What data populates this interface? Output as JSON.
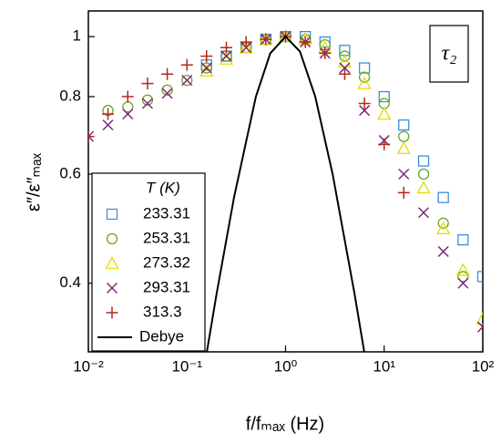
{
  "chart_data": {
    "type": "scatter",
    "x_label": "f/fₘₐₓ (Hz)",
    "y_label": "ε″/ε″ₘₐₓ",
    "annotation": "τ₂",
    "legend_title": "T (K)",
    "xscale": "log",
    "yscale": "log",
    "xlim": [
      0.01,
      100
    ],
    "ylim": [
      0.31,
      1.1
    ],
    "xticks": [
      {
        "value": 0.01,
        "label": "10⁻²"
      },
      {
        "value": 0.1,
        "label": "10⁻¹"
      },
      {
        "value": 1,
        "label": "10⁰"
      },
      {
        "value": 10,
        "label": "10¹"
      },
      {
        "value": 100,
        "label": "10²"
      }
    ],
    "yticks": [
      0.4,
      0.6,
      0.8,
      1
    ],
    "legend": "lower left",
    "series": [
      {
        "name": "233.31",
        "color": "#3a8fdc",
        "marker": "square",
        "x": [
          0.158,
          0.251,
          0.398,
          0.631,
          1,
          1.585,
          2.51,
          3.98,
          6.31,
          10,
          15.8,
          25.1,
          39.8,
          63.1,
          100
        ],
        "values": [
          0.9,
          0.93,
          0.96,
          0.99,
          1.0,
          1.0,
          0.98,
          0.95,
          0.89,
          0.8,
          0.72,
          0.63,
          0.55,
          0.47,
          0.41
        ]
      },
      {
        "name": "253.31",
        "color": "#6aa622",
        "marker": "circle",
        "x": [
          0.0158,
          0.0251,
          0.0398,
          0.0631,
          0.1,
          0.158,
          0.251,
          0.398,
          0.631,
          1,
          1.585,
          2.51,
          3.98,
          6.31,
          10,
          15.8,
          25.1,
          39.8,
          63.1
        ],
        "values": [
          0.76,
          0.77,
          0.79,
          0.82,
          0.85,
          0.89,
          0.93,
          0.96,
          0.99,
          1.0,
          0.99,
          0.97,
          0.93,
          0.86,
          0.78,
          0.69,
          0.6,
          0.5,
          0.41
        ]
      },
      {
        "name": "273.32",
        "color": "#e6dc00",
        "marker": "triangle",
        "x": [
          0.158,
          0.251,
          0.398,
          0.631,
          1,
          1.585,
          2.51,
          3.98,
          6.31,
          10,
          15.8,
          25.1,
          39.8,
          63.1,
          100
        ],
        "values": [
          0.88,
          0.92,
          0.96,
          0.99,
          1.0,
          0.99,
          0.96,
          0.91,
          0.84,
          0.75,
          0.66,
          0.57,
          0.49,
          0.42,
          0.35
        ]
      },
      {
        "name": "293.31",
        "color": "#7b2a7a",
        "marker": "x",
        "x": [
          0.01,
          0.0158,
          0.0251,
          0.0398,
          0.0631,
          0.1,
          0.158,
          0.251,
          0.398,
          0.631,
          1,
          1.585,
          2.51,
          3.98,
          6.31,
          10,
          15.8,
          25.1,
          39.8,
          63.1,
          100
        ],
        "values": [
          0.69,
          0.72,
          0.75,
          0.78,
          0.81,
          0.85,
          0.89,
          0.93,
          0.96,
          0.99,
          1.0,
          0.98,
          0.94,
          0.89,
          0.76,
          0.68,
          0.6,
          0.52,
          0.45,
          0.4,
          0.34
        ]
      },
      {
        "name": "313.3",
        "color": "#b5261e",
        "marker": "plus",
        "x": [
          0.01,
          0.0158,
          0.0251,
          0.0398,
          0.0631,
          0.1,
          0.158,
          0.251,
          0.398,
          0.631,
          1,
          1.585,
          2.51,
          3.98,
          6.31,
          10,
          15.8
        ],
        "values": [
          0.69,
          0.75,
          0.8,
          0.84,
          0.87,
          0.9,
          0.93,
          0.96,
          0.98,
          0.99,
          1.0,
          0.98,
          0.94,
          0.87,
          0.78,
          0.67,
          0.56
        ]
      },
      {
        "name": "Debye",
        "color": "#000000",
        "marker": "line",
        "x": [
          0.15,
          0.2,
          0.3,
          0.5,
          0.7,
          1,
          1.4,
          2,
          3,
          5,
          6.5
        ],
        "values": [
          0.293,
          0.385,
          0.55,
          0.8,
          0.94,
          1.0,
          0.946,
          0.8,
          0.6,
          0.385,
          0.3
        ]
      }
    ]
  }
}
